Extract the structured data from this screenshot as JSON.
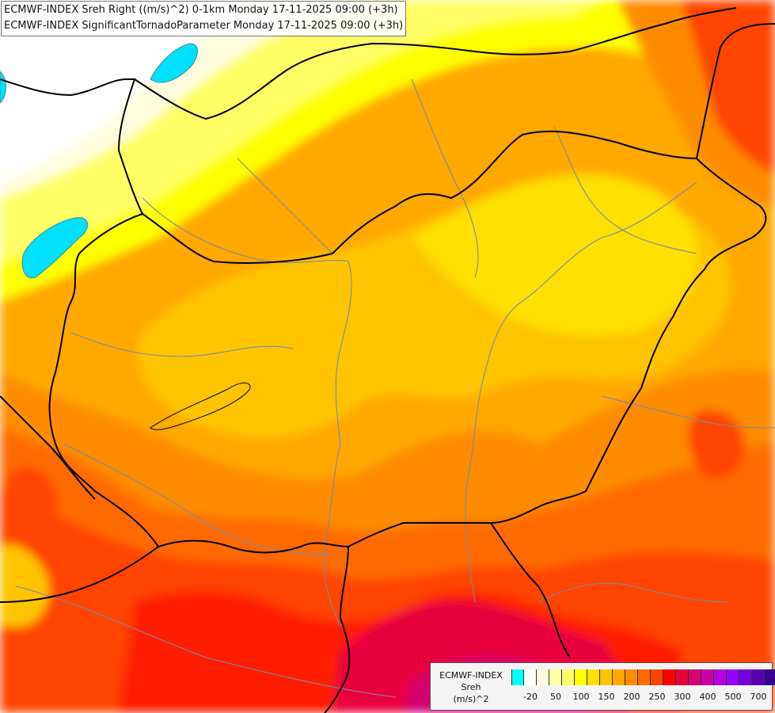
{
  "title_lines": [
    "ECMWF-INDEX Sreh Right ((m/s)^2) 0-1km Monday 17-11-2025 09:00 (+3h)",
    "ECMWF-INDEX SignificantTornadoParameter Monday 17-11-2025 09:00 (+3h)"
  ],
  "legend": {
    "line1": "ECMWF-INDEX",
    "line2": "Sreh",
    "line3": "(m/s)^2",
    "colors": [
      "#00ffff",
      "#ffffff",
      "#fffce0",
      "#ffffa8",
      "#ffff66",
      "#ffff00",
      "#ffe000",
      "#ffc400",
      "#ffa800",
      "#ff8c00",
      "#ff6a00",
      "#ff4400",
      "#ff0000",
      "#e8003c",
      "#d40070",
      "#c800a8",
      "#b400dc",
      "#9600ff",
      "#7800e0",
      "#5a00b4",
      "#3c0090",
      "#1e006c"
    ],
    "ticks": [
      "-20",
      "50",
      "100",
      "150",
      "200",
      "250",
      "300",
      "400",
      "500",
      "700"
    ]
  },
  "map": {
    "border_color": "#000000",
    "river_color": "#7a8aa8",
    "lake_color": "#00e0ff",
    "base_color": "#ffa800"
  }
}
